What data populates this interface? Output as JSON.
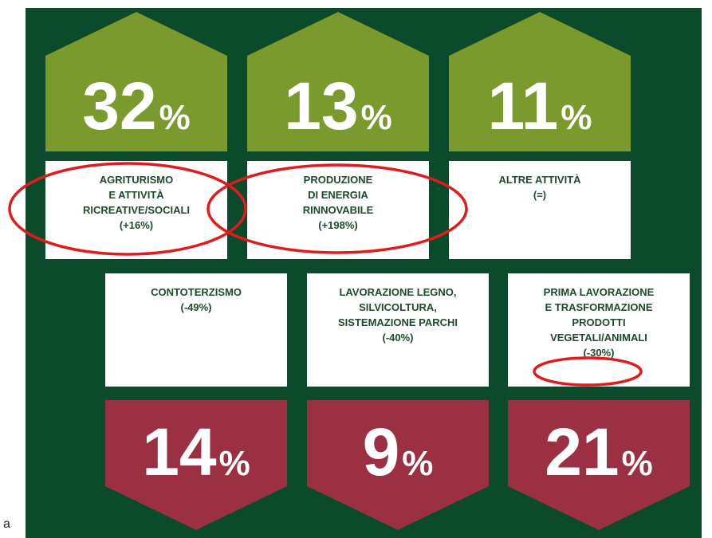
{
  "top": [
    {
      "number": "32",
      "unit": "%",
      "lines": [
        "AGRITURISMO",
        "E ATTIVITÀ",
        "RICREATIVE/SOCIALI",
        "(+16%)"
      ]
    },
    {
      "number": "13",
      "unit": "%",
      "lines": [
        "PRODUZIONE",
        "DI ENERGIA",
        "RINNOVABILE",
        "(+198%)"
      ]
    },
    {
      "number": "11",
      "unit": "%",
      "lines": [
        "ALTRE ATTIVITÀ",
        "(=)"
      ]
    }
  ],
  "bottom": [
    {
      "number": "14",
      "unit": "%",
      "lines": [
        "CONTOTERZISMO",
        "(-49%)"
      ]
    },
    {
      "number": "9",
      "unit": "%",
      "lines": [
        "LAVORAZIONE LEGNO,",
        "SILVICOLTURA,",
        "SISTEMAZIONE PARCHI",
        "(-40%)"
      ]
    },
    {
      "number": "21",
      "unit": "%",
      "lines": [
        "PRIMA LAVORAZIONE",
        "E TRASFORMAZIONE",
        "PRODOTTI",
        "VEGETALI/ANIMALI",
        "(-30%)"
      ]
    }
  ],
  "stray": "a"
}
